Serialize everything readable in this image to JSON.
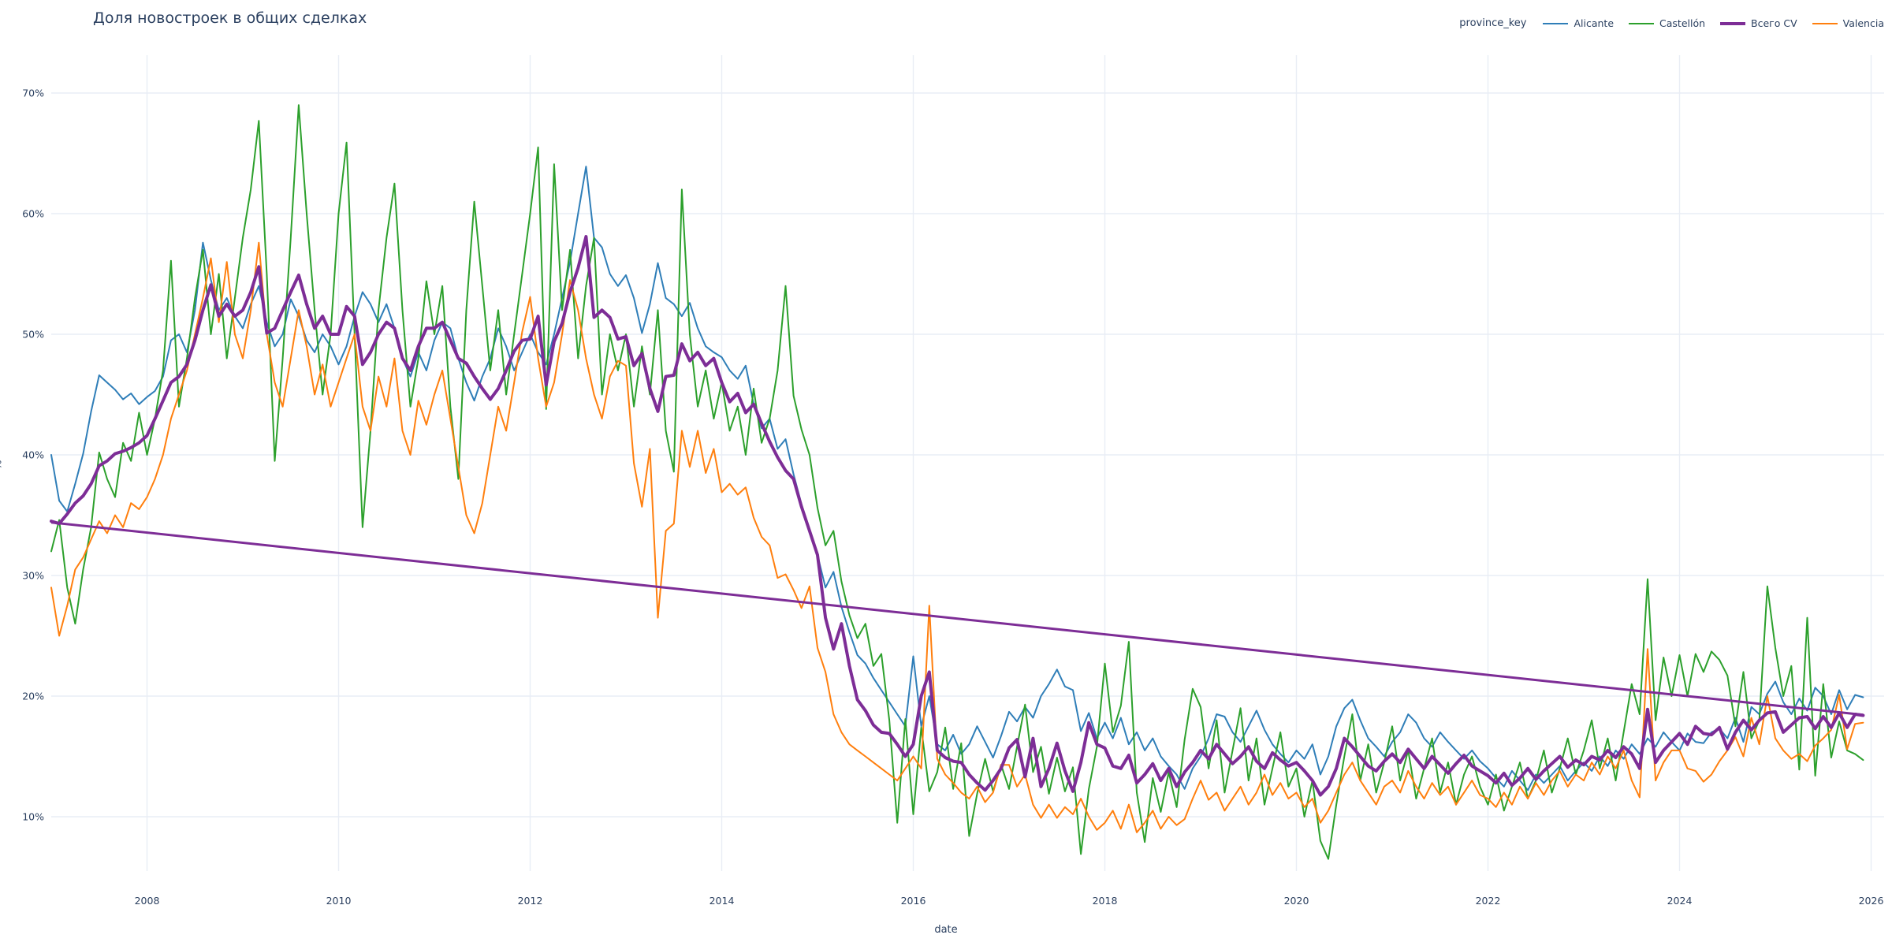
{
  "title": "Доля новостроек в общих сделках",
  "legend": {
    "title": "province_key",
    "entries": [
      {
        "id": "alicante",
        "label": "Alicante",
        "color": "#2f7eb8",
        "width": 2
      },
      {
        "id": "castellon",
        "label": "Castellón",
        "color": "#2ca02c",
        "width": 2
      },
      {
        "id": "cv",
        "label": "Всего CV",
        "color": "#7d2d96",
        "width": 4
      },
      {
        "id": "valencia",
        "label": "Valencia",
        "color": "#ff7f0e",
        "width": 2
      }
    ]
  },
  "axes": {
    "x": {
      "label": "date",
      "ticks": [
        {
          "v": 2008,
          "label": "2008"
        },
        {
          "v": 2010,
          "label": "2010"
        },
        {
          "v": 2012,
          "label": "2012"
        },
        {
          "v": 2014,
          "label": "2014"
        },
        {
          "v": 2016,
          "label": "2016"
        },
        {
          "v": 2018,
          "label": "2018"
        },
        {
          "v": 2020,
          "label": "2020"
        },
        {
          "v": 2022,
          "label": "2022"
        },
        {
          "v": 2024,
          "label": "2024"
        },
        {
          "v": 2026,
          "label": "2026"
        }
      ]
    },
    "y": {
      "label": "%",
      "ticks": [
        {
          "v": 10,
          "label": "10%"
        },
        {
          "v": 20,
          "label": "20%"
        },
        {
          "v": 30,
          "label": "30%"
        },
        {
          "v": 40,
          "label": "40%"
        },
        {
          "v": 50,
          "label": "50%"
        },
        {
          "v": 60,
          "label": "60%"
        },
        {
          "v": 70,
          "label": "70%"
        }
      ]
    }
  },
  "chart_data": {
    "type": "line",
    "title": "Доля новостроек в общих сделках",
    "xlabel": "date",
    "ylabel": "%",
    "x_range": [
      2006.9,
      2026.2
    ],
    "y_range": [
      5,
      73
    ],
    "grid": true,
    "legend_position": "top-right",
    "x": {
      "start": 2007.0,
      "frequency": "monthly",
      "points": 228
    },
    "series": [
      {
        "id": "alicante",
        "name": "Alicante",
        "color": "#2f7eb8",
        "width": 2,
        "values": [
          40.0,
          36.2,
          35.3,
          37.6,
          40.1,
          43.6,
          46.6,
          46.0,
          45.4,
          44.6,
          45.1,
          44.2,
          44.8,
          45.3,
          46.5,
          49.5,
          50.0,
          48.5,
          52.0,
          57.6,
          54.5,
          52.0,
          53.0,
          51.5,
          50.5,
          52.5,
          54.0,
          51.0,
          49.0,
          50.0,
          52.9,
          51.5,
          49.5,
          48.5,
          50.0,
          49.0,
          47.5,
          49.0,
          51.5,
          53.5,
          52.5,
          51.0,
          52.5,
          50.5,
          48.0,
          46.5,
          48.5,
          47.0,
          49.5,
          51.0,
          50.5,
          48.0,
          46.0,
          44.5,
          46.5,
          48.0,
          50.5,
          49.0,
          47.0,
          48.5,
          50.0,
          48.5,
          47.5,
          50.0,
          53.0,
          56.0,
          60.0,
          63.9,
          58.0,
          57.2,
          55.0,
          54.0,
          54.9,
          53.0,
          50.1,
          52.5,
          55.9,
          53.0,
          52.5,
          51.5,
          52.6,
          50.5,
          49.0,
          48.5,
          48.1,
          47.0,
          46.3,
          47.4,
          44.2,
          42.2,
          43.0,
          40.5,
          41.3,
          38.4,
          35.9,
          33.7,
          31.7,
          29.0,
          30.3,
          27.4,
          25.3,
          23.4,
          22.7,
          21.5,
          20.5,
          19.5,
          18.5,
          17.5,
          23.3,
          17.5,
          20.0,
          16.0,
          15.5,
          16.8,
          15.2,
          16.0,
          17.5,
          16.2,
          14.9,
          16.7,
          18.7,
          17.9,
          19.1,
          18.2,
          20.0,
          21.0,
          22.2,
          20.8,
          20.5,
          17.1,
          18.6,
          16.5,
          17.8,
          16.5,
          18.2,
          16.0,
          17.0,
          15.5,
          16.5,
          15.0,
          14.2,
          13.5,
          12.3,
          14.0,
          15.0,
          16.5,
          18.5,
          18.3,
          17.0,
          16.2,
          17.5,
          18.8,
          17.2,
          16.0,
          15.2,
          14.5,
          15.5,
          14.8,
          16.0,
          13.5,
          15.0,
          17.5,
          19.0,
          19.7,
          18.0,
          16.5,
          15.8,
          15.0,
          16.2,
          17.0,
          18.5,
          17.8,
          16.5,
          15.8,
          17.0,
          16.2,
          15.5,
          14.8,
          15.5,
          14.6,
          14.0,
          13.2,
          12.5,
          13.8,
          13.0,
          12.2,
          13.5,
          12.8,
          13.5,
          14.2,
          13.0,
          13.8,
          14.5,
          13.8,
          15.0,
          14.2,
          15.5,
          14.8,
          16.0,
          15.2,
          16.5,
          15.8,
          17.0,
          16.2,
          15.5,
          16.9,
          16.2,
          16.1,
          17.0,
          17.3,
          16.5,
          18.2,
          16.2,
          19.1,
          18.5,
          20.2,
          21.2,
          19.5,
          18.5,
          19.8,
          18.8,
          20.7,
          20.0,
          18.5,
          20.5,
          18.9,
          20.1,
          19.9
        ]
      },
      {
        "id": "castellon",
        "name": "Castellón",
        "color": "#2ca02c",
        "width": 2,
        "values": [
          32.0,
          34.6,
          29.0,
          26.0,
          30.5,
          34.0,
          40.2,
          38.0,
          36.5,
          41.0,
          39.5,
          43.5,
          40.0,
          43.0,
          47.0,
          56.1,
          44.0,
          48.0,
          53.0,
          57.0,
          50.0,
          55.0,
          48.0,
          53.0,
          58.0,
          62.0,
          67.7,
          55.0,
          39.5,
          48.0,
          58.0,
          69.0,
          60.0,
          52.0,
          45.0,
          50.0,
          60.0,
          65.9,
          50.0,
          34.0,
          42.0,
          52.0,
          58.0,
          62.5,
          52.0,
          44.0,
          48.0,
          54.4,
          50.0,
          54.0,
          44.0,
          38.0,
          52.0,
          61.0,
          54.0,
          47.0,
          52.0,
          45.0,
          50.0,
          55.0,
          60.0,
          65.5,
          43.8,
          64.1,
          52.0,
          57.0,
          48.0,
          54.0,
          58.0,
          45.0,
          50.0,
          47.0,
          50.0,
          44.0,
          49.0,
          45.0,
          52.0,
          42.0,
          38.6,
          62.0,
          50.0,
          44.0,
          47.0,
          43.0,
          46.0,
          42.0,
          44.0,
          40.0,
          45.5,
          41.0,
          43.0,
          47.0,
          54.0,
          44.9,
          42.1,
          40.0,
          35.6,
          32.5,
          33.7,
          29.5,
          26.7,
          24.8,
          26.0,
          22.5,
          23.5,
          18.0,
          9.5,
          18.1,
          10.2,
          17.4,
          12.1,
          13.7,
          17.4,
          12.3,
          16.1,
          8.4,
          11.9,
          14.8,
          12.1,
          14.3,
          12.3,
          15.8,
          19.3,
          13.7,
          15.8,
          11.9,
          14.9,
          12.1,
          14.1,
          6.9,
          12.3,
          15.8,
          22.7,
          17.0,
          19.2,
          24.5,
          12.0,
          7.9,
          13.2,
          10.4,
          13.7,
          10.8,
          16.4,
          20.6,
          19.1,
          14.0,
          18.0,
          12.0,
          15.5,
          19.0,
          13.0,
          16.5,
          11.0,
          14.0,
          17.0,
          12.5,
          14.0,
          10.0,
          13.0,
          8.0,
          6.5,
          11.0,
          15.0,
          18.5,
          13.0,
          16.0,
          12.0,
          14.5,
          17.5,
          13.0,
          15.5,
          11.5,
          14.0,
          16.5,
          12.0,
          14.5,
          11.0,
          13.5,
          15.0,
          12.5,
          11.0,
          13.5,
          10.5,
          12.5,
          14.5,
          11.5,
          13.0,
          15.5,
          12.0,
          14.0,
          16.5,
          13.5,
          15.5,
          18.0,
          14.0,
          16.5,
          13.0,
          17.0,
          21.0,
          18.5,
          29.7,
          18.0,
          23.2,
          20.0,
          23.4,
          20.0,
          23.5,
          22.0,
          23.7,
          23.0,
          21.7,
          17.5,
          22.0,
          16.5,
          18.0,
          29.1,
          24.0,
          20.0,
          22.5,
          13.9,
          26.5,
          13.4,
          21.0,
          14.9,
          17.9,
          15.5,
          15.2,
          14.7
        ]
      },
      {
        "id": "valencia",
        "name": "Valencia",
        "color": "#ff7f0e",
        "width": 2,
        "values": [
          29.0,
          25.0,
          27.5,
          30.5,
          31.5,
          33.0,
          34.5,
          33.5,
          35.0,
          34.0,
          36.0,
          35.5,
          36.5,
          38.0,
          40.0,
          43.0,
          45.0,
          47.0,
          50.0,
          53.0,
          56.3,
          51.0,
          56.0,
          50.0,
          48.0,
          52.0,
          57.6,
          50.0,
          46.0,
          44.0,
          48.0,
          52.0,
          49.0,
          45.0,
          47.5,
          44.0,
          46.0,
          48.0,
          50.0,
          44.0,
          42.0,
          46.5,
          44.0,
          48.0,
          42.0,
          40.0,
          44.5,
          42.5,
          45.0,
          47.0,
          43.0,
          39.0,
          35.0,
          33.5,
          36.0,
          40.0,
          44.0,
          42.0,
          46.0,
          50.2,
          53.1,
          48.0,
          44.0,
          46.0,
          50.0,
          54.5,
          52.0,
          48.0,
          45.0,
          43.0,
          46.5,
          47.8,
          47.4,
          39.3,
          35.7,
          40.5,
          26.5,
          33.7,
          34.3,
          42.0,
          39.0,
          42.0,
          38.5,
          40.5,
          36.9,
          37.6,
          36.7,
          37.3,
          34.8,
          33.2,
          32.5,
          29.8,
          30.1,
          28.8,
          27.3,
          29.1,
          24.0,
          22.0,
          18.5,
          17.0,
          16.0,
          15.5,
          15.0,
          14.5,
          14.0,
          13.5,
          13.0,
          14.0,
          15.0,
          14.0,
          27.5,
          14.8,
          13.5,
          12.8,
          12.0,
          11.5,
          12.5,
          11.2,
          12.0,
          14.3,
          14.3,
          12.5,
          13.5,
          11.0,
          9.9,
          11.0,
          9.9,
          10.8,
          10.2,
          11.5,
          10.0,
          8.9,
          9.5,
          10.5,
          9.0,
          11.0,
          8.7,
          9.5,
          10.5,
          9.0,
          10.0,
          9.3,
          9.8,
          11.5,
          13.0,
          11.4,
          12.0,
          10.5,
          11.5,
          12.5,
          11.0,
          12.0,
          13.5,
          11.8,
          12.8,
          11.5,
          12.0,
          10.8,
          11.5,
          9.5,
          10.5,
          12.0,
          13.5,
          14.5,
          13.0,
          12.0,
          11.0,
          12.5,
          13.0,
          12.0,
          13.8,
          12.5,
          11.5,
          12.8,
          11.8,
          12.5,
          11.0,
          12.0,
          13.0,
          11.8,
          11.5,
          10.8,
          12.0,
          11.0,
          12.5,
          11.5,
          12.8,
          11.8,
          13.0,
          13.8,
          12.5,
          13.5,
          13.0,
          14.5,
          13.5,
          15.0,
          14.0,
          15.5,
          13.0,
          11.6,
          23.9,
          13.0,
          14.5,
          15.5,
          15.5,
          14.0,
          13.8,
          12.9,
          13.5,
          14.6,
          15.5,
          16.6,
          15.0,
          18.2,
          16.0,
          20.0,
          16.5,
          15.5,
          14.8,
          15.2,
          14.6,
          15.9,
          16.5,
          17.2,
          20.1,
          15.6,
          17.7,
          17.8
        ]
      },
      {
        "id": "cv",
        "name": "Всего CV",
        "color": "#7d2d96",
        "width": 4,
        "values": [
          34.5,
          34.3,
          35.1,
          36.0,
          36.6,
          37.6,
          39.1,
          39.5,
          40.1,
          40.3,
          40.6,
          41.0,
          41.6,
          43.0,
          44.5,
          46.0,
          46.5,
          47.5,
          49.5,
          52.0,
          54.1,
          51.5,
          52.5,
          51.5,
          52.0,
          53.5,
          55.6,
          50.1,
          50.5,
          52.0,
          53.5,
          54.9,
          52.5,
          50.5,
          51.5,
          50.0,
          50.0,
          52.3,
          51.5,
          47.5,
          48.5,
          50.0,
          51.0,
          50.5,
          48.0,
          47.0,
          49.0,
          50.5,
          50.5,
          51.0,
          49.5,
          48.0,
          47.6,
          46.5,
          45.5,
          44.6,
          45.5,
          47.0,
          48.6,
          49.5,
          49.6,
          51.5,
          45.8,
          49.4,
          50.9,
          53.5,
          55.5,
          58.1,
          51.4,
          52.0,
          51.4,
          49.6,
          49.8,
          47.4,
          48.4,
          45.5,
          43.6,
          46.5,
          46.6,
          49.2,
          47.8,
          48.5,
          47.4,
          48.0,
          46.0,
          44.4,
          45.1,
          43.5,
          44.2,
          42.6,
          41.1,
          39.8,
          38.7,
          38.0,
          35.7,
          33.7,
          31.7,
          26.5,
          23.9,
          26.0,
          22.5,
          19.7,
          18.8,
          17.6,
          17.0,
          16.9,
          16.0,
          15.0,
          16.0,
          20.0,
          22.0,
          15.5,
          14.9,
          14.6,
          14.5,
          13.5,
          12.8,
          12.2,
          13.0,
          14.0,
          15.7,
          16.4,
          13.3,
          16.5,
          12.5,
          14.0,
          16.1,
          13.8,
          12.1,
          14.5,
          17.8,
          16.0,
          15.7,
          14.2,
          14.0,
          15.1,
          12.8,
          13.5,
          14.4,
          13.0,
          14.0,
          12.5,
          13.7,
          14.5,
          15.5,
          14.8,
          16.0,
          15.2,
          14.4,
          15.0,
          15.8,
          14.6,
          14.0,
          15.3,
          14.7,
          14.2,
          14.5,
          13.8,
          13.0,
          11.8,
          12.5,
          14.0,
          16.5,
          15.8,
          15.0,
          14.2,
          13.8,
          14.6,
          15.2,
          14.5,
          15.6,
          14.8,
          14.0,
          15.0,
          14.3,
          13.6,
          14.4,
          15.1,
          14.2,
          13.8,
          13.4,
          12.8,
          13.6,
          12.6,
          13.2,
          14.0,
          13.1,
          13.8,
          14.4,
          15.0,
          14.1,
          14.7,
          14.3,
          15.0,
          14.7,
          15.5,
          14.9,
          15.8,
          15.2,
          14.0,
          18.9,
          14.5,
          15.5,
          16.2,
          16.9,
          16.0,
          17.5,
          16.9,
          16.8,
          17.4,
          15.6,
          17.0,
          18.0,
          17.2,
          18.0,
          18.6,
          18.7,
          17.0,
          17.6,
          18.2,
          18.3,
          17.3,
          18.3,
          17.4,
          18.6,
          17.4,
          18.5,
          18.4
        ]
      }
    ],
    "trend": {
      "name": "linear-trend",
      "color": "#7d2d96",
      "width": 3,
      "x": [
        2007.0,
        2025.917
      ],
      "y": [
        34.4,
        18.45
      ]
    }
  }
}
